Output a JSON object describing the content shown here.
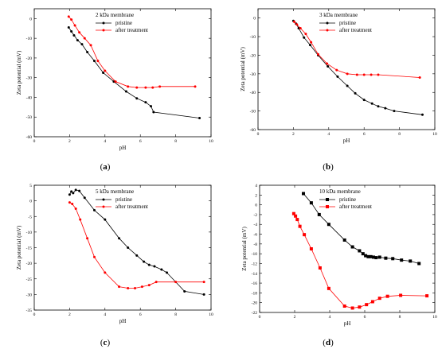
{
  "panel_labels": [
    {
      "open": "(",
      "letter": "a",
      "close": ")"
    },
    {
      "open": "(",
      "letter": "b",
      "close": ")"
    },
    {
      "open": "(",
      "letter": "c",
      "close": ")"
    },
    {
      "open": "(",
      "letter": "d",
      "close": ")"
    }
  ],
  "chart_data": [
    {
      "type": "line",
      "title": "2 kDa membrane",
      "xlabel": "pH",
      "ylabel": "Zeta potential (mV)",
      "xlim": [
        0,
        10
      ],
      "ylim": [
        -60,
        5
      ],
      "xticks": [
        "0",
        "2",
        "4",
        "6",
        "8",
        "10"
      ],
      "yticks": [
        "0",
        "-10",
        "-20",
        "-30",
        "-40",
        "-50",
        "-60"
      ],
      "legend": "top-right",
      "series": [
        {
          "name": "pristine",
          "color": "#000000",
          "marker": "circle",
          "x": [
            1.95,
            2.1,
            2.25,
            2.45,
            2.7,
            3.0,
            3.4,
            3.9,
            4.5,
            5.2,
            5.8,
            6.3,
            6.6,
            6.75,
            9.35
          ],
          "y": [
            -4.5,
            -6.5,
            -8.5,
            -11.0,
            -13.0,
            -17.0,
            -21.5,
            -27.5,
            -32.0,
            -37.0,
            -40.5,
            -42.5,
            -44.5,
            -47.5,
            -50.5
          ]
        },
        {
          "name": "after treatment",
          "color": "#ff0000",
          "marker": "circle",
          "x": [
            1.95,
            2.1,
            2.3,
            2.55,
            2.85,
            3.2,
            3.6,
            4.0,
            4.6,
            5.3,
            5.8,
            6.3,
            6.7,
            7.1,
            9.1
          ],
          "y": [
            1.0,
            -0.5,
            -3.5,
            -7.0,
            -10.0,
            -13.5,
            -21.5,
            -26.5,
            -32.0,
            -34.5,
            -35.0,
            -35.0,
            -35.0,
            -34.5,
            -34.5
          ]
        }
      ]
    },
    {
      "type": "line",
      "title": "3 kDa membrane",
      "xlabel": "pH",
      "ylabel": "Zeta potential (mV)",
      "xlim": [
        0,
        10
      ],
      "ylim": [
        -60,
        5
      ],
      "xticks": [
        "0",
        "2",
        "4",
        "6",
        "8",
        "10"
      ],
      "yticks": [
        "0",
        "-10",
        "-20",
        "-30",
        "-40",
        "-50",
        "-60"
      ],
      "legend": "top-right",
      "series": [
        {
          "name": "pristine",
          "color": "#000000",
          "marker": "circle",
          "x": [
            2.0,
            2.15,
            2.3,
            2.6,
            2.95,
            3.4,
            3.95,
            4.5,
            5.05,
            5.5,
            6.0,
            6.45,
            6.8,
            7.2,
            7.7,
            9.3
          ],
          "y": [
            -1.5,
            -3.0,
            -5.5,
            -10.5,
            -14.5,
            -20.0,
            -26.0,
            -31.5,
            -36.5,
            -40.5,
            -44.0,
            -46.0,
            -47.5,
            -48.5,
            -50.0,
            -52.0
          ]
        },
        {
          "name": "after treatment",
          "color": "#ff0000",
          "marker": "circle",
          "x": [
            2.05,
            2.2,
            2.4,
            2.7,
            3.0,
            3.4,
            3.9,
            4.45,
            5.05,
            5.6,
            6.0,
            6.4,
            6.8,
            9.15
          ],
          "y": [
            -2.0,
            -3.5,
            -5.5,
            -8.5,
            -13.0,
            -19.5,
            -24.5,
            -28.0,
            -30.0,
            -30.5,
            -30.5,
            -30.5,
            -30.5,
            -32.0
          ]
        }
      ]
    },
    {
      "type": "line",
      "title": "5 kDa membrane",
      "xlabel": "pH",
      "ylabel": "Zeta potential (mV)",
      "xlim": [
        0,
        10
      ],
      "ylim": [
        -35,
        5
      ],
      "xticks": [
        "0",
        "2",
        "4",
        "6",
        "8",
        "10"
      ],
      "yticks": [
        "5",
        "0",
        "-5",
        "-10",
        "-15",
        "-20",
        "-25",
        "-30",
        "-35"
      ],
      "legend": "top-right",
      "series": [
        {
          "name": "pristine",
          "color": "#000000",
          "marker": "circle",
          "x": [
            2.0,
            2.1,
            2.2,
            2.35,
            2.55,
            2.85,
            3.4,
            4.0,
            4.8,
            5.3,
            5.8,
            6.2,
            6.5,
            6.8,
            7.2,
            7.5,
            8.5,
            9.6
          ],
          "y": [
            2.0,
            3.0,
            2.5,
            3.5,
            3.2,
            1.0,
            -3.0,
            -6.0,
            -12.0,
            -15.0,
            -17.5,
            -19.5,
            -20.5,
            -21.0,
            -22.0,
            -23.0,
            -29.0,
            -30.0
          ]
        },
        {
          "name": "after treatment",
          "color": "#ff0000",
          "marker": "circle",
          "x": [
            2.0,
            2.15,
            2.35,
            2.6,
            3.0,
            3.4,
            4.0,
            4.8,
            5.3,
            5.7,
            6.1,
            6.5,
            6.9,
            8.0,
            9.6
          ],
          "y": [
            -0.5,
            -1.0,
            -2.5,
            -6.0,
            -12.0,
            -18.0,
            -23.0,
            -27.5,
            -28.0,
            -28.0,
            -27.5,
            -27.0,
            -26.0,
            -26.0,
            -26.0
          ]
        }
      ]
    },
    {
      "type": "line",
      "title": "10 kDa membrane",
      "xlabel": "pH",
      "ylabel": "Zeta potential (mV)",
      "xlim": [
        0,
        10
      ],
      "ylim": [
        -22,
        4
      ],
      "xticks": [
        "0",
        "2",
        "4",
        "6",
        "8",
        "10"
      ],
      "yticks": [
        "4",
        "2",
        "0",
        "-2",
        "-4",
        "-6",
        "-8",
        "-10",
        "-12",
        "-14",
        "-16",
        "-18",
        "-20",
        "-22"
      ],
      "legend": "top-right",
      "series": [
        {
          "name": "pristine",
          "color": "#000000",
          "marker": "square",
          "x": [
            2.5,
            2.95,
            3.4,
            3.95,
            4.85,
            5.3,
            5.7,
            5.9,
            6.05,
            6.2,
            6.35,
            6.5,
            6.65,
            6.85,
            7.2,
            7.6,
            8.1,
            8.6,
            9.1
          ],
          "y": [
            2.3,
            0.4,
            -2.0,
            -4.0,
            -7.2,
            -8.6,
            -9.4,
            -10.0,
            -10.4,
            -10.6,
            -10.6,
            -10.7,
            -10.8,
            -10.7,
            -10.9,
            -11.0,
            -11.3,
            -11.5,
            -12.0
          ]
        },
        {
          "name": "after treatment",
          "color": "#ff0000",
          "marker": "square",
          "x": [
            1.95,
            2.05,
            2.15,
            2.3,
            2.55,
            2.95,
            3.45,
            3.95,
            4.85,
            5.3,
            5.7,
            6.1,
            6.45,
            6.85,
            7.3,
            8.05,
            9.55
          ],
          "y": [
            -1.8,
            -2.3,
            -3.0,
            -4.4,
            -6.1,
            -9.0,
            -12.9,
            -17.1,
            -20.7,
            -21.1,
            -20.9,
            -20.4,
            -19.8,
            -19.1,
            -18.7,
            -18.5,
            -18.6
          ]
        }
      ]
    }
  ]
}
